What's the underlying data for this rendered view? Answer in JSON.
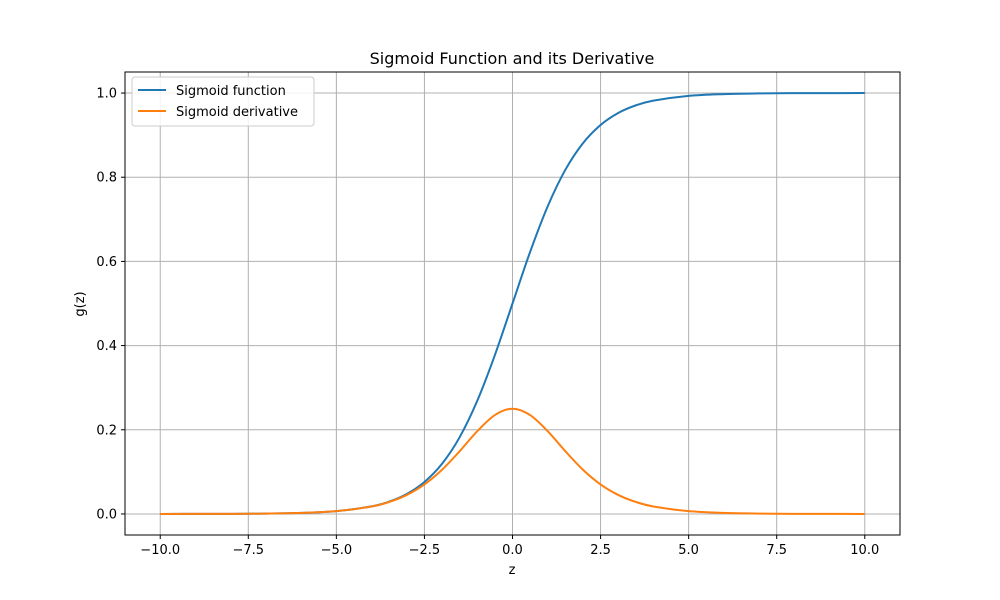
{
  "chart_data": {
    "type": "line",
    "title": "Sigmoid Function and its Derivative",
    "xlabel": "z",
    "ylabel": "g(z)",
    "xlim": [
      -11.0,
      11.0
    ],
    "ylim": [
      -0.05,
      1.05
    ],
    "xticks": [
      -10.0,
      -7.5,
      -5.0,
      -2.5,
      0.0,
      2.5,
      5.0,
      7.5,
      10.0
    ],
    "xtick_labels": [
      "−10.0",
      "−7.5",
      "−5.0",
      "−2.5",
      "0.0",
      "2.5",
      "5.0",
      "7.5",
      "10.0"
    ],
    "yticks": [
      0.0,
      0.2,
      0.4,
      0.6,
      0.8,
      1.0
    ],
    "ytick_labels": [
      "0.0",
      "0.2",
      "0.4",
      "0.6",
      "0.8",
      "1.0"
    ],
    "grid": true,
    "legend_position": "top-left",
    "x": [
      -10,
      -9,
      -8,
      -7,
      -6,
      -5,
      -4,
      -3.5,
      -3,
      -2.5,
      -2,
      -1.5,
      -1,
      -0.5,
      0,
      0.5,
      1,
      1.5,
      2,
      2.5,
      3,
      3.5,
      4,
      5,
      6,
      7,
      8,
      9,
      10
    ],
    "series": [
      {
        "name": "Sigmoid function",
        "color": "#1f77b4",
        "values": [
          0.0,
          0.0001,
          0.0003,
          0.0009,
          0.0025,
          0.0067,
          0.018,
          0.0293,
          0.0474,
          0.0759,
          0.1192,
          0.1824,
          0.2689,
          0.3775,
          0.5,
          0.6225,
          0.7311,
          0.8176,
          0.8808,
          0.9241,
          0.9526,
          0.9707,
          0.982,
          0.9933,
          0.9975,
          0.9991,
          0.9997,
          0.9999,
          1.0
        ]
      },
      {
        "name": "Sigmoid derivative",
        "color": "#ff7f0e",
        "values": [
          0.0,
          0.0001,
          0.0003,
          0.0009,
          0.0025,
          0.0066,
          0.0177,
          0.0285,
          0.0452,
          0.0701,
          0.105,
          0.1491,
          0.1966,
          0.235,
          0.25,
          0.235,
          0.1966,
          0.1491,
          0.105,
          0.0701,
          0.0452,
          0.0285,
          0.0177,
          0.0066,
          0.0025,
          0.0009,
          0.0003,
          0.0001,
          0.0
        ]
      }
    ]
  }
}
